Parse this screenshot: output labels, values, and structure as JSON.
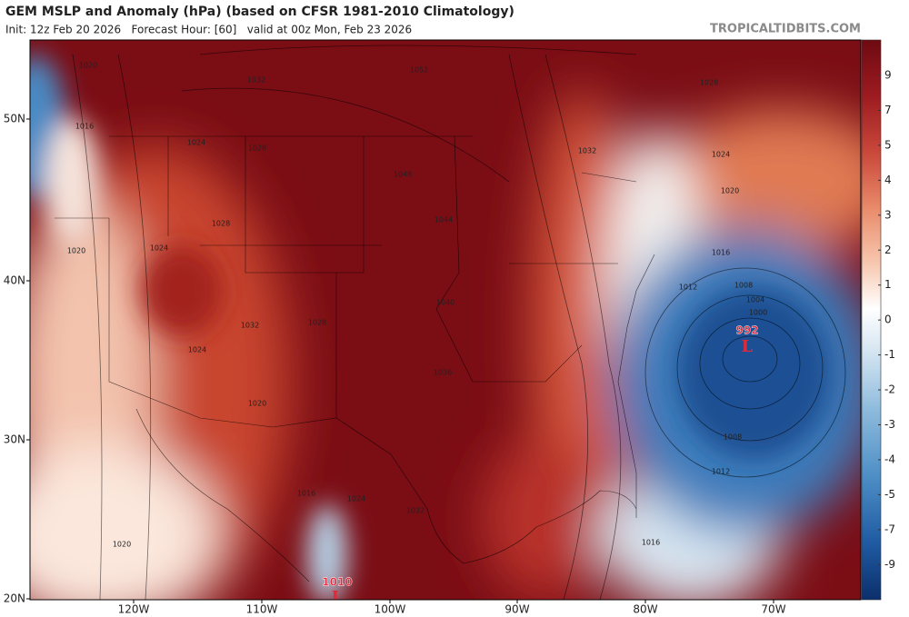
{
  "header": {
    "title": "GEM MSLP and Anomaly (hPa) (based on CFSR 1981-2010 Climatology)",
    "subtitle": "Init: 12z Feb 20 2026   Forecast Hour: [60]   valid at 00z Mon, Feb 23 2026",
    "site": "TROPICALTIDBITS.COM"
  },
  "colorbar": {
    "ticks": [
      "9",
      "7",
      "5",
      "4",
      "3",
      "2",
      "1",
      "0",
      "-1",
      "-2",
      "-3",
      "-4",
      "-5",
      "-7",
      "-9"
    ]
  },
  "latitudes": [
    "50N",
    "40N",
    "30N",
    "20N"
  ],
  "longitudes": [
    "120W",
    "110W",
    "100W",
    "90W",
    "80W",
    "70W"
  ],
  "contour_labels": [
    "1020",
    "1032",
    "1052",
    "1016",
    "1024",
    "1028",
    "1028",
    "1048",
    "1044",
    "1032",
    "1024",
    "1020",
    "1020",
    "1024",
    "1028",
    "1032",
    "1028",
    "1040",
    "1024",
    "1036",
    "1020",
    "1016",
    "1012",
    "1008",
    "1004",
    "1000",
    "1008",
    "1012",
    "1016",
    "1024",
    "1032",
    "1016",
    "1020"
  ],
  "lows": [
    {
      "pressure": "992",
      "symbol": "L"
    },
    {
      "pressure": "1010",
      "symbol": "L"
    }
  ]
}
